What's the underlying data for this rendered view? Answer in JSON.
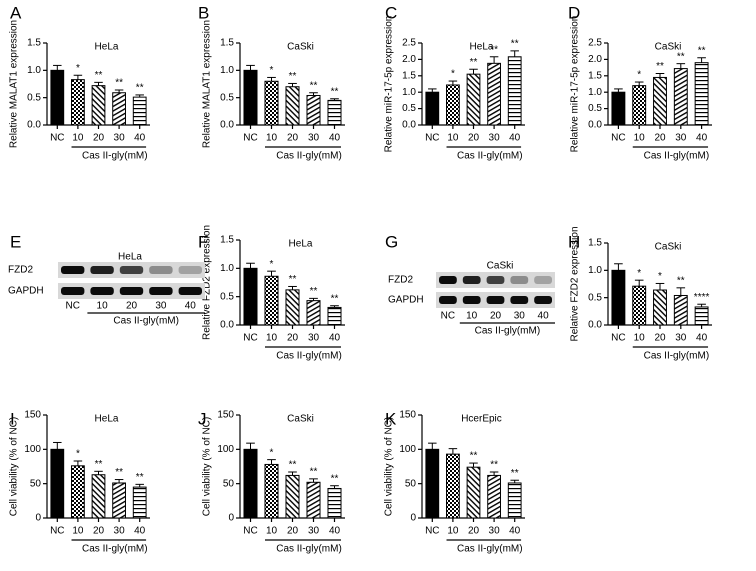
{
  "chart_data": [
    {
      "type": "bar",
      "panel": "A",
      "title": "HeLa",
      "ylabel": "Relative MALAT1 expression",
      "group_label": "Cas II-gly(mM)",
      "categories": [
        "NC",
        "10",
        "20",
        "30",
        "40"
      ],
      "values": [
        1.0,
        0.83,
        0.72,
        0.59,
        0.51
      ],
      "errors": [
        0.09,
        0.08,
        0.06,
        0.05,
        0.04
      ],
      "significance": [
        null,
        "*",
        "**",
        "**",
        "**"
      ],
      "ylim": [
        0,
        1.5
      ],
      "yticks": [
        {
          "value": 0,
          "label": "0.0"
        },
        0.5,
        {
          "value": 1,
          "label": "1.0"
        },
        1.5
      ]
    },
    {
      "type": "bar",
      "panel": "B",
      "title": "CaSki",
      "ylabel": "Relative MALAT1 expression",
      "group_label": "Cas II-gly(mM)",
      "categories": [
        "NC",
        "10",
        "20",
        "30",
        "40"
      ],
      "values": [
        1.0,
        0.8,
        0.7,
        0.54,
        0.45
      ],
      "errors": [
        0.09,
        0.07,
        0.06,
        0.05,
        0.03
      ],
      "significance": [
        null,
        "*",
        "**",
        "**",
        "**"
      ],
      "ylim": [
        0,
        1.5
      ],
      "yticks": [
        {
          "value": 0,
          "label": "0.0"
        },
        0.5,
        {
          "value": 1,
          "label": "1.0"
        },
        1.5
      ]
    },
    {
      "type": "bar",
      "panel": "C",
      "title": "HeLa",
      "ylabel": "Relative miR-17-5p expression",
      "group_label": "Cas II-gly(mM)",
      "categories": [
        "NC",
        "10",
        "20",
        "30",
        "40"
      ],
      "values": [
        1.0,
        1.22,
        1.55,
        1.88,
        2.08
      ],
      "errors": [
        0.1,
        0.12,
        0.15,
        0.2,
        0.18
      ],
      "significance": [
        null,
        "*",
        "**",
        "**",
        "**"
      ],
      "ylim": [
        0,
        2.5
      ],
      "yticks": [
        {
          "value": 0,
          "label": "0.0"
        },
        0.5,
        {
          "value": 1,
          "label": "1.0"
        },
        1.5,
        {
          "value": 2,
          "label": "2.0"
        },
        2.5
      ]
    },
    {
      "type": "bar",
      "panel": "D",
      "title": "CaSki",
      "ylabel": "Relative miR-17-5p expression",
      "group_label": "Cas II-gly(mM)",
      "categories": [
        "NC",
        "10",
        "20",
        "30",
        "40"
      ],
      "values": [
        1.0,
        1.2,
        1.45,
        1.72,
        1.9
      ],
      "errors": [
        0.1,
        0.11,
        0.12,
        0.15,
        0.15
      ],
      "significance": [
        null,
        "*",
        "**",
        "**",
        "**"
      ],
      "ylim": [
        0,
        2.5
      ],
      "yticks": [
        {
          "value": 0,
          "label": "0.0"
        },
        0.5,
        {
          "value": 1,
          "label": "1.0"
        },
        1.5,
        {
          "value": 2,
          "label": "2.0"
        },
        2.5
      ]
    },
    {
      "type": "bar",
      "panel": "F",
      "title": "HeLa",
      "ylabel": "Relative FZD2 expression",
      "group_label": "Cas II-gly(mM)",
      "categories": [
        "NC",
        "10",
        "20",
        "30",
        "40"
      ],
      "values": [
        1.0,
        0.86,
        0.62,
        0.43,
        0.31
      ],
      "errors": [
        0.09,
        0.09,
        0.06,
        0.04,
        0.03
      ],
      "significance": [
        null,
        "*",
        "**",
        "**",
        "**"
      ],
      "ylim": [
        0,
        1.5
      ],
      "yticks": [
        {
          "value": 0,
          "label": "0.0"
        },
        0.5,
        {
          "value": 1,
          "label": "1.0"
        },
        1.5
      ]
    },
    {
      "type": "bar",
      "panel": "H",
      "title": "CaSki",
      "ylabel": "Relative FZD2 expression",
      "group_label": "Cas II-gly(mM)",
      "categories": [
        "NC",
        "10",
        "20",
        "30",
        "40"
      ],
      "values": [
        1.0,
        0.71,
        0.64,
        0.54,
        0.33
      ],
      "errors": [
        0.12,
        0.11,
        0.12,
        0.14,
        0.05
      ],
      "significance": [
        null,
        "*",
        "*",
        "**",
        "****"
      ],
      "ylim": [
        0,
        1.5
      ],
      "yticks": [
        {
          "value": 0,
          "label": "0.0"
        },
        0.5,
        {
          "value": 1,
          "label": "1.0"
        },
        1.5
      ]
    },
    {
      "type": "bar",
      "panel": "I",
      "title": "HeLa",
      "ylabel": "Cell viability (% of NC)",
      "group_label": "Cas II-gly(mM)",
      "categories": [
        "NC",
        "10",
        "20",
        "30",
        "40"
      ],
      "values": [
        100,
        76,
        63,
        51,
        45
      ],
      "errors": [
        10,
        7,
        5,
        5,
        4
      ],
      "significance": [
        null,
        "*",
        "**",
        "**",
        "**"
      ],
      "ylim": [
        0,
        150
      ],
      "yticks": [
        0,
        50,
        100,
        150
      ]
    },
    {
      "type": "bar",
      "panel": "J",
      "title": "CaSki",
      "ylabel": "Cell viability (% of NC)",
      "group_label": "Cas II-gly(mM)",
      "categories": [
        "NC",
        "10",
        "20",
        "30",
        "40"
      ],
      "values": [
        100,
        78,
        62,
        52,
        43
      ],
      "errors": [
        9,
        7,
        5,
        5,
        4
      ],
      "significance": [
        null,
        "*",
        "**",
        "**",
        "**"
      ],
      "ylim": [
        0,
        150
      ],
      "yticks": [
        0,
        50,
        100,
        150
      ]
    },
    {
      "type": "bar",
      "panel": "K",
      "title": "HcerEpic",
      "ylabel": "Cell viability (% of NC)",
      "group_label": "Cas II-gly(mM)",
      "categories": [
        "NC",
        "10",
        "20",
        "30",
        "40"
      ],
      "values": [
        100,
        93,
        74,
        62,
        51
      ],
      "errors": [
        9,
        8,
        6,
        5,
        4
      ],
      "significance": [
        null,
        null,
        "**",
        "**",
        "**"
      ],
      "ylim": [
        0,
        150
      ],
      "yticks": [
        0,
        50,
        100,
        150
      ]
    }
  ],
  "blots": [
    {
      "panel": "E",
      "title": "HeLa",
      "rows": [
        "FZD2",
        "GAPDH"
      ],
      "categories": [
        "NC",
        "10",
        "20",
        "30",
        "40"
      ],
      "group_label": "Cas II-gly(mM)"
    },
    {
      "panel": "G",
      "title": "CaSki",
      "rows": [
        "FZD2",
        "GAPDH"
      ],
      "categories": [
        "NC",
        "10",
        "20",
        "30",
        "40"
      ],
      "group_label": "Cas II-gly(mM)"
    }
  ]
}
